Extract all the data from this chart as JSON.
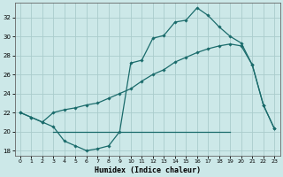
{
  "xlabel": "Humidex (Indice chaleur)",
  "bg_color": "#cce8e8",
  "grid_color": "#aacccc",
  "line_color": "#1a6b6b",
  "xlim": [
    -0.5,
    23.5
  ],
  "ylim": [
    17.5,
    33.5
  ],
  "yticks": [
    18,
    20,
    22,
    24,
    26,
    28,
    30,
    32
  ],
  "xticks": [
    0,
    1,
    2,
    3,
    4,
    5,
    6,
    7,
    8,
    9,
    10,
    11,
    12,
    13,
    14,
    15,
    16,
    17,
    18,
    19,
    20,
    21,
    22,
    23
  ],
  "line1_x": [
    0,
    1,
    2,
    3,
    4,
    5,
    6,
    7,
    8,
    9,
    10,
    11,
    12,
    13,
    14,
    15,
    16,
    17,
    18,
    19,
    20,
    21,
    22,
    23
  ],
  "line1_y": [
    22.0,
    21.5,
    21.0,
    20.5,
    19.0,
    18.5,
    18.0,
    18.2,
    18.5,
    20.0,
    27.2,
    27.5,
    29.8,
    30.1,
    31.5,
    31.7,
    33.0,
    32.2,
    31.0,
    30.0,
    29.3,
    27.0,
    22.8,
    20.3
  ],
  "line2_x": [
    0,
    1,
    2,
    3,
    4,
    5,
    6,
    7,
    8,
    9,
    10,
    11,
    12,
    13,
    14,
    15,
    16,
    17,
    18,
    19,
    20,
    21,
    22,
    23
  ],
  "line2_y": [
    22.0,
    21.5,
    21.0,
    22.0,
    22.3,
    22.5,
    22.8,
    23.0,
    23.5,
    24.0,
    24.5,
    25.3,
    26.0,
    26.5,
    27.3,
    27.8,
    28.3,
    28.7,
    29.0,
    29.2,
    29.0,
    27.0,
    22.8,
    20.3
  ],
  "line3_x": [
    3,
    19
  ],
  "line3_y": [
    20.0,
    20.0
  ]
}
